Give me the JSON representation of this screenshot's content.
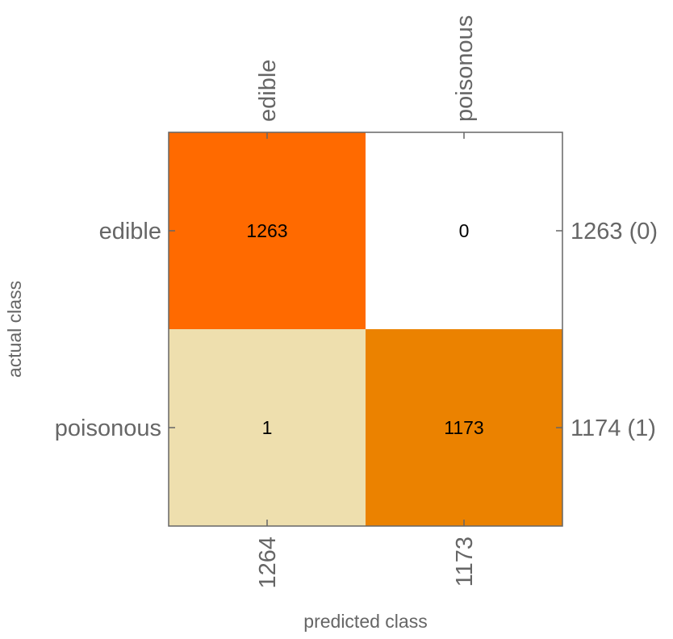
{
  "chart_data": {
    "type": "heatmap",
    "xlabel": "predicted class",
    "ylabel": "actual class",
    "classes": [
      "edible",
      "poisonous"
    ],
    "matrix": [
      [
        1263,
        0
      ],
      [
        1,
        1173
      ]
    ],
    "column_totals": [
      "1264",
      "1173"
    ],
    "row_totals": [
      "1263 (0)",
      "1174 (1)"
    ],
    "cell_colors": [
      [
        "#ff6a00",
        "#ffffff"
      ],
      [
        "#eedfae",
        "#eb8200"
      ]
    ],
    "grid": false
  }
}
